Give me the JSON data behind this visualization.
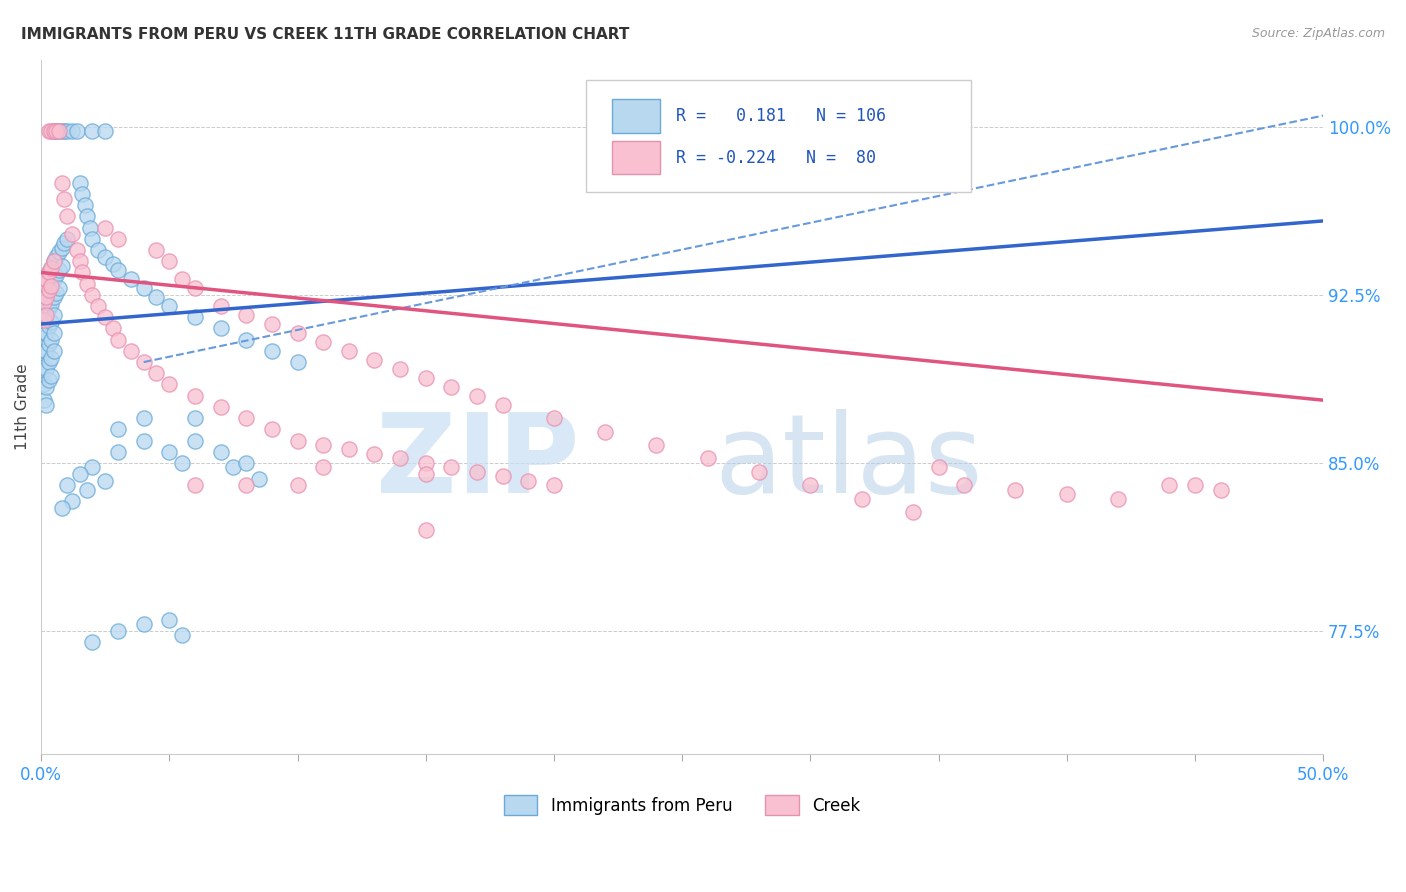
{
  "title": "IMMIGRANTS FROM PERU VS CREEK 11TH GRADE CORRELATION CHART",
  "source": "Source: ZipAtlas.com",
  "ylabel": "11th Grade",
  "ytick_labels": [
    "77.5%",
    "85.0%",
    "92.5%",
    "100.0%"
  ],
  "ytick_values": [
    0.775,
    0.85,
    0.925,
    1.0
  ],
  "xlim": [
    0.0,
    0.5
  ],
  "ylim": [
    0.72,
    1.03
  ],
  "blue_scatter": [
    [
      0.001,
      0.93
    ],
    [
      0.001,
      0.922
    ],
    [
      0.001,
      0.915
    ],
    [
      0.001,
      0.908
    ],
    [
      0.001,
      0.9
    ],
    [
      0.001,
      0.893
    ],
    [
      0.001,
      0.885
    ],
    [
      0.001,
      0.878
    ],
    [
      0.002,
      0.932
    ],
    [
      0.002,
      0.924
    ],
    [
      0.002,
      0.916
    ],
    [
      0.002,
      0.908
    ],
    [
      0.002,
      0.9
    ],
    [
      0.002,
      0.892
    ],
    [
      0.002,
      0.884
    ],
    [
      0.002,
      0.876
    ],
    [
      0.003,
      0.935
    ],
    [
      0.003,
      0.927
    ],
    [
      0.003,
      0.919
    ],
    [
      0.003,
      0.911
    ],
    [
      0.003,
      0.903
    ],
    [
      0.003,
      0.895
    ],
    [
      0.003,
      0.887
    ],
    [
      0.004,
      0.937
    ],
    [
      0.004,
      0.929
    ],
    [
      0.004,
      0.921
    ],
    [
      0.004,
      0.913
    ],
    [
      0.004,
      0.905
    ],
    [
      0.004,
      0.897
    ],
    [
      0.004,
      0.889
    ],
    [
      0.005,
      0.998
    ],
    [
      0.005,
      0.94
    ],
    [
      0.005,
      0.932
    ],
    [
      0.005,
      0.924
    ],
    [
      0.005,
      0.916
    ],
    [
      0.005,
      0.908
    ],
    [
      0.005,
      0.9
    ],
    [
      0.006,
      0.998
    ],
    [
      0.006,
      0.942
    ],
    [
      0.006,
      0.934
    ],
    [
      0.006,
      0.926
    ],
    [
      0.007,
      0.998
    ],
    [
      0.007,
      0.944
    ],
    [
      0.007,
      0.936
    ],
    [
      0.007,
      0.928
    ],
    [
      0.008,
      0.998
    ],
    [
      0.008,
      0.946
    ],
    [
      0.008,
      0.938
    ],
    [
      0.009,
      0.998
    ],
    [
      0.009,
      0.948
    ],
    [
      0.01,
      0.998
    ],
    [
      0.01,
      0.95
    ],
    [
      0.012,
      0.998
    ],
    [
      0.014,
      0.998
    ],
    [
      0.015,
      0.975
    ],
    [
      0.016,
      0.97
    ],
    [
      0.017,
      0.965
    ],
    [
      0.018,
      0.96
    ],
    [
      0.019,
      0.955
    ],
    [
      0.02,
      0.95
    ],
    [
      0.022,
      0.945
    ],
    [
      0.025,
      0.942
    ],
    [
      0.028,
      0.939
    ],
    [
      0.03,
      0.936
    ],
    [
      0.035,
      0.932
    ],
    [
      0.04,
      0.928
    ],
    [
      0.045,
      0.924
    ],
    [
      0.05,
      0.92
    ],
    [
      0.02,
      0.998
    ],
    [
      0.025,
      0.998
    ],
    [
      0.06,
      0.915
    ],
    [
      0.07,
      0.91
    ],
    [
      0.08,
      0.905
    ],
    [
      0.09,
      0.9
    ],
    [
      0.1,
      0.895
    ],
    [
      0.04,
      0.87
    ],
    [
      0.04,
      0.86
    ],
    [
      0.06,
      0.87
    ],
    [
      0.06,
      0.86
    ],
    [
      0.05,
      0.855
    ],
    [
      0.055,
      0.85
    ],
    [
      0.03,
      0.865
    ],
    [
      0.03,
      0.855
    ],
    [
      0.07,
      0.855
    ],
    [
      0.075,
      0.848
    ],
    [
      0.08,
      0.85
    ],
    [
      0.085,
      0.843
    ],
    [
      0.02,
      0.848
    ],
    [
      0.025,
      0.842
    ],
    [
      0.015,
      0.845
    ],
    [
      0.018,
      0.838
    ],
    [
      0.01,
      0.84
    ],
    [
      0.012,
      0.833
    ],
    [
      0.008,
      0.83
    ],
    [
      0.05,
      0.78
    ],
    [
      0.055,
      0.773
    ],
    [
      0.04,
      0.778
    ],
    [
      0.03,
      0.775
    ],
    [
      0.02,
      0.77
    ]
  ],
  "pink_scatter": [
    [
      0.001,
      0.93
    ],
    [
      0.001,
      0.922
    ],
    [
      0.001,
      0.914
    ],
    [
      0.002,
      0.932
    ],
    [
      0.002,
      0.924
    ],
    [
      0.002,
      0.916
    ],
    [
      0.003,
      0.998
    ],
    [
      0.003,
      0.935
    ],
    [
      0.003,
      0.927
    ],
    [
      0.004,
      0.998
    ],
    [
      0.004,
      0.937
    ],
    [
      0.004,
      0.929
    ],
    [
      0.005,
      0.998
    ],
    [
      0.005,
      0.94
    ],
    [
      0.006,
      0.998
    ],
    [
      0.007,
      0.998
    ],
    [
      0.008,
      0.975
    ],
    [
      0.009,
      0.968
    ],
    [
      0.01,
      0.96
    ],
    [
      0.012,
      0.952
    ],
    [
      0.014,
      0.945
    ],
    [
      0.015,
      0.94
    ],
    [
      0.016,
      0.935
    ],
    [
      0.018,
      0.93
    ],
    [
      0.02,
      0.925
    ],
    [
      0.022,
      0.92
    ],
    [
      0.025,
      0.915
    ],
    [
      0.028,
      0.91
    ],
    [
      0.03,
      0.905
    ],
    [
      0.035,
      0.9
    ],
    [
      0.04,
      0.895
    ],
    [
      0.045,
      0.89
    ],
    [
      0.05,
      0.885
    ],
    [
      0.06,
      0.88
    ],
    [
      0.07,
      0.875
    ],
    [
      0.08,
      0.87
    ],
    [
      0.09,
      0.865
    ],
    [
      0.1,
      0.86
    ],
    [
      0.11,
      0.858
    ],
    [
      0.12,
      0.856
    ],
    [
      0.13,
      0.854
    ],
    [
      0.14,
      0.852
    ],
    [
      0.15,
      0.85
    ],
    [
      0.16,
      0.848
    ],
    [
      0.17,
      0.846
    ],
    [
      0.18,
      0.844
    ],
    [
      0.19,
      0.842
    ],
    [
      0.2,
      0.84
    ],
    [
      0.025,
      0.955
    ],
    [
      0.03,
      0.95
    ],
    [
      0.045,
      0.945
    ],
    [
      0.05,
      0.94
    ],
    [
      0.055,
      0.932
    ],
    [
      0.06,
      0.928
    ],
    [
      0.07,
      0.92
    ],
    [
      0.08,
      0.916
    ],
    [
      0.09,
      0.912
    ],
    [
      0.1,
      0.908
    ],
    [
      0.11,
      0.904
    ],
    [
      0.12,
      0.9
    ],
    [
      0.13,
      0.896
    ],
    [
      0.14,
      0.892
    ],
    [
      0.15,
      0.888
    ],
    [
      0.16,
      0.884
    ],
    [
      0.17,
      0.88
    ],
    [
      0.18,
      0.876
    ],
    [
      0.2,
      0.87
    ],
    [
      0.22,
      0.864
    ],
    [
      0.24,
      0.858
    ],
    [
      0.26,
      0.852
    ],
    [
      0.28,
      0.846
    ],
    [
      0.3,
      0.84
    ],
    [
      0.32,
      0.834
    ],
    [
      0.34,
      0.828
    ],
    [
      0.36,
      0.84
    ],
    [
      0.38,
      0.838
    ],
    [
      0.4,
      0.836
    ],
    [
      0.42,
      0.834
    ],
    [
      0.44,
      0.84
    ],
    [
      0.46,
      0.838
    ],
    [
      0.15,
      0.82
    ],
    [
      0.35,
      0.848
    ],
    [
      0.45,
      0.84
    ],
    [
      0.1,
      0.84
    ],
    [
      0.15,
      0.845
    ],
    [
      0.08,
      0.84
    ],
    [
      0.11,
      0.848
    ],
    [
      0.06,
      0.84
    ]
  ],
  "blue_line": {
    "x0": 0.0,
    "x1": 0.5,
    "y0": 0.912,
    "y1": 0.958
  },
  "blue_dashed_line": {
    "x0": 0.04,
    "x1": 0.5,
    "y0": 0.895,
    "y1": 1.005
  },
  "pink_line": {
    "x0": 0.0,
    "x1": 0.5,
    "y0": 0.935,
    "y1": 0.878
  }
}
